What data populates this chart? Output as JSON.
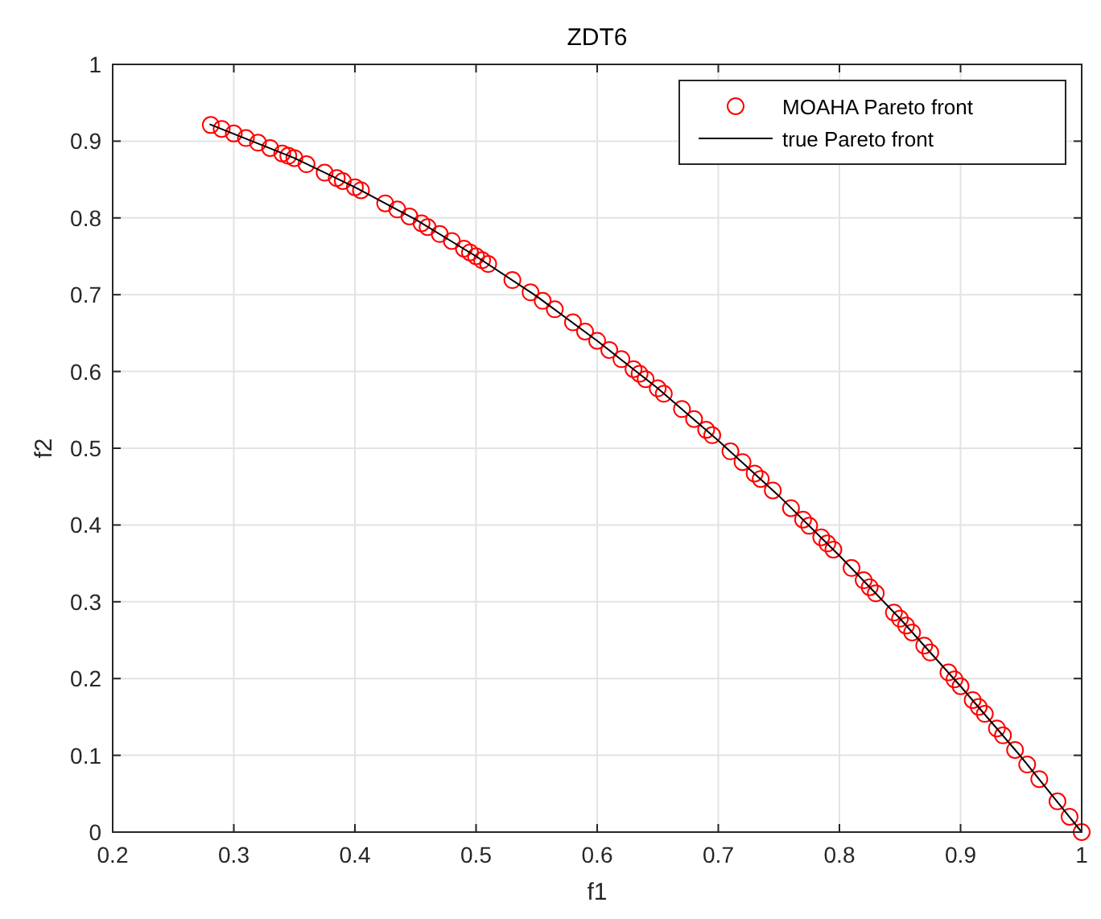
{
  "chart_data": {
    "type": "scatter",
    "title": "ZDT6",
    "xlabel": "f1",
    "ylabel": "f2",
    "xlim": [
      0.2,
      1
    ],
    "ylim": [
      0,
      1
    ],
    "xticks": [
      0.2,
      0.3,
      0.4,
      0.5,
      0.6,
      0.7,
      0.8,
      0.9,
      1
    ],
    "yticks": [
      0,
      0.1,
      0.2,
      0.3,
      0.4,
      0.5,
      0.6,
      0.7,
      0.8,
      0.9,
      1
    ],
    "grid": true,
    "legend": "top right",
    "series": [
      {
        "name": "MOAHA Pareto front",
        "marker": "circle",
        "color": "#ff0000",
        "x": [
          0.281,
          0.29,
          0.3,
          0.31,
          0.32,
          0.33,
          0.34,
          0.345,
          0.35,
          0.36,
          0.375,
          0.385,
          0.39,
          0.4,
          0.405,
          0.425,
          0.435,
          0.445,
          0.455,
          0.46,
          0.47,
          0.48,
          0.49,
          0.495,
          0.5,
          0.505,
          0.51,
          0.53,
          0.545,
          0.555,
          0.565,
          0.58,
          0.59,
          0.6,
          0.61,
          0.62,
          0.63,
          0.635,
          0.64,
          0.65,
          0.655,
          0.67,
          0.68,
          0.69,
          0.695,
          0.71,
          0.72,
          0.73,
          0.735,
          0.745,
          0.76,
          0.77,
          0.775,
          0.785,
          0.79,
          0.795,
          0.81,
          0.82,
          0.825,
          0.83,
          0.845,
          0.85,
          0.855,
          0.86,
          0.87,
          0.875,
          0.89,
          0.895,
          0.9,
          0.91,
          0.915,
          0.92,
          0.93,
          0.935,
          0.945,
          0.955,
          0.965,
          0.98,
          0.99,
          1.0
        ],
        "values": [
          0.921,
          0.916,
          0.91,
          0.904,
          0.898,
          0.891,
          0.884,
          0.881,
          0.878,
          0.87,
          0.859,
          0.852,
          0.848,
          0.84,
          0.836,
          0.819,
          0.811,
          0.802,
          0.793,
          0.788,
          0.779,
          0.77,
          0.76,
          0.755,
          0.75,
          0.745,
          0.74,
          0.719,
          0.703,
          0.692,
          0.681,
          0.664,
          0.652,
          0.64,
          0.628,
          0.616,
          0.603,
          0.597,
          0.59,
          0.578,
          0.571,
          0.551,
          0.538,
          0.524,
          0.517,
          0.496,
          0.482,
          0.467,
          0.46,
          0.445,
          0.422,
          0.407,
          0.399,
          0.384,
          0.376,
          0.368,
          0.344,
          0.328,
          0.319,
          0.311,
          0.286,
          0.278,
          0.269,
          0.26,
          0.243,
          0.234,
          0.208,
          0.199,
          0.19,
          0.172,
          0.163,
          0.154,
          0.135,
          0.126,
          0.107,
          0.088,
          0.069,
          0.04,
          0.02,
          0
        ]
      },
      {
        "name": "true Pareto front",
        "type": "line",
        "marker": "none",
        "line_style": "solid",
        "color": "#000000",
        "x": [
          0.28,
          0.35,
          0.4,
          0.45,
          0.5,
          0.55,
          0.6,
          0.65,
          0.7,
          0.75,
          0.8,
          0.85,
          0.9,
          0.95,
          1.0
        ],
        "values": [
          0.922,
          0.878,
          0.84,
          0.798,
          0.75,
          0.698,
          0.64,
          0.578,
          0.51,
          0.438,
          0.36,
          0.278,
          0.19,
          0.098,
          0
        ]
      }
    ]
  }
}
